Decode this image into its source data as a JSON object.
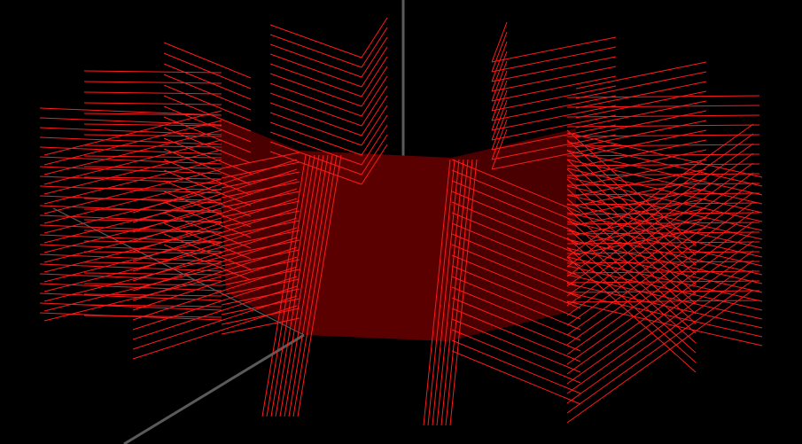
{
  "scene": {
    "background_color": "#000000",
    "axis_color": "#5a5a5a",
    "stripe_color": "#ff1a1a",
    "core_color": "#4a0000",
    "core_panel_color": "#5a0000",
    "blade_count": 12,
    "lines_per_blade": 12
  }
}
